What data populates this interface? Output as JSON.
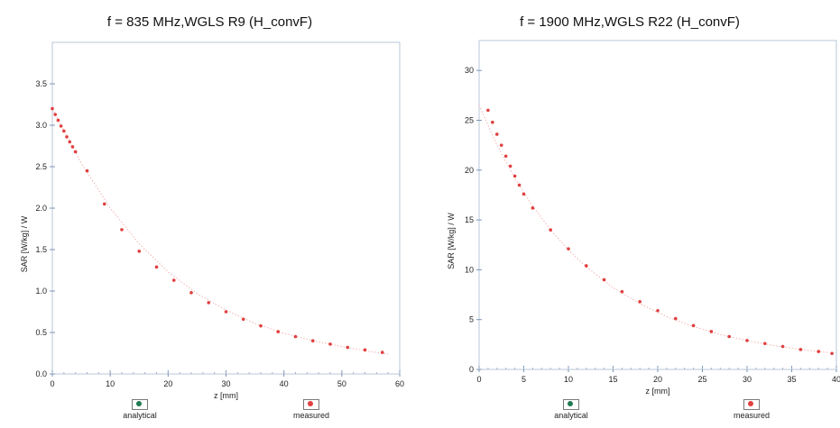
{
  "colors": {
    "analytical": "#1f7a52",
    "measured": "#e04040",
    "frame": "#b9c7d9"
  },
  "legend": {
    "analytical_label": "analytical",
    "measured_label": "measured"
  },
  "chart_data": [
    {
      "type": "scatter",
      "title": "f = 835 MHz,WGLS R9 (H_convF)",
      "xlabel": "z [mm]",
      "ylabel": "SAR [W/kg] / W",
      "xlim": [
        0,
        60
      ],
      "ylim": [
        0,
        4.0
      ],
      "xticks": [
        0,
        10,
        20,
        30,
        40,
        50,
        60
      ],
      "yticks": [
        0.0,
        0.5,
        1.0,
        1.5,
        2.0,
        2.5,
        3.0,
        3.5
      ],
      "ytick_labels": [
        "0.0",
        "0.5",
        "1.0",
        "1.5",
        "2.0",
        "2.5",
        "3.0",
        "3.5"
      ],
      "series": [
        {
          "name": "analytical",
          "x": [
            0,
            5,
            10,
            15,
            20,
            25,
            30,
            35,
            40,
            45,
            50,
            55,
            58
          ],
          "y": [
            3.2,
            2.54,
            2.0,
            1.57,
            1.23,
            0.97,
            0.77,
            0.61,
            0.49,
            0.4,
            0.33,
            0.27,
            0.24
          ]
        },
        {
          "name": "measured",
          "x": [
            0,
            0.5,
            1,
            1.5,
            2,
            2.5,
            3,
            3.5,
            4,
            6,
            9,
            12,
            15,
            18,
            21,
            24,
            27,
            30,
            33,
            36,
            39,
            42,
            45,
            48,
            51,
            54,
            57
          ],
          "y": [
            3.2,
            3.13,
            3.06,
            2.99,
            2.93,
            2.86,
            2.8,
            2.74,
            2.68,
            2.45,
            2.05,
            1.74,
            1.48,
            1.29,
            1.13,
            0.98,
            0.86,
            0.75,
            0.66,
            0.58,
            0.51,
            0.45,
            0.4,
            0.36,
            0.32,
            0.29,
            0.26
          ]
        }
      ]
    },
    {
      "type": "scatter",
      "title": "f = 1900 MHz,WGLS R22 (H_convF)",
      "xlabel": "z [mm]",
      "ylabel": "SAR [W/kg] / W",
      "xlim": [
        0,
        40
      ],
      "ylim": [
        0,
        33
      ],
      "xticks": [
        0,
        5,
        10,
        15,
        20,
        25,
        30,
        35,
        40
      ],
      "yticks": [
        0,
        5,
        10,
        15,
        20,
        25,
        30
      ],
      "ytick_labels": [
        "0",
        "5",
        "10",
        "15",
        "20",
        "25",
        "30"
      ],
      "series": [
        {
          "name": "analytical",
          "x": [
            0,
            2,
            4,
            6,
            8,
            10,
            12,
            15,
            18,
            21,
            24,
            27,
            30,
            33,
            36,
            39
          ],
          "y": [
            26.5,
            22.5,
            19.2,
            16.4,
            14.0,
            12.0,
            10.3,
            8.2,
            6.6,
            5.3,
            4.3,
            3.5,
            2.9,
            2.4,
            2.0,
            1.7
          ]
        },
        {
          "name": "measured",
          "x": [
            1,
            1.5,
            2,
            2.5,
            3,
            3.5,
            4,
            4.5,
            5,
            6,
            8,
            10,
            12,
            14,
            16,
            18,
            20,
            22,
            24,
            26,
            28,
            30,
            32,
            34,
            36,
            38,
            39.5
          ],
          "y": [
            26.0,
            24.8,
            23.6,
            22.5,
            21.4,
            20.4,
            19.4,
            18.5,
            17.6,
            16.2,
            14.0,
            12.1,
            10.4,
            9.0,
            7.8,
            6.8,
            5.9,
            5.1,
            4.4,
            3.8,
            3.3,
            2.9,
            2.6,
            2.3,
            2.0,
            1.8,
            1.6
          ]
        }
      ]
    }
  ]
}
